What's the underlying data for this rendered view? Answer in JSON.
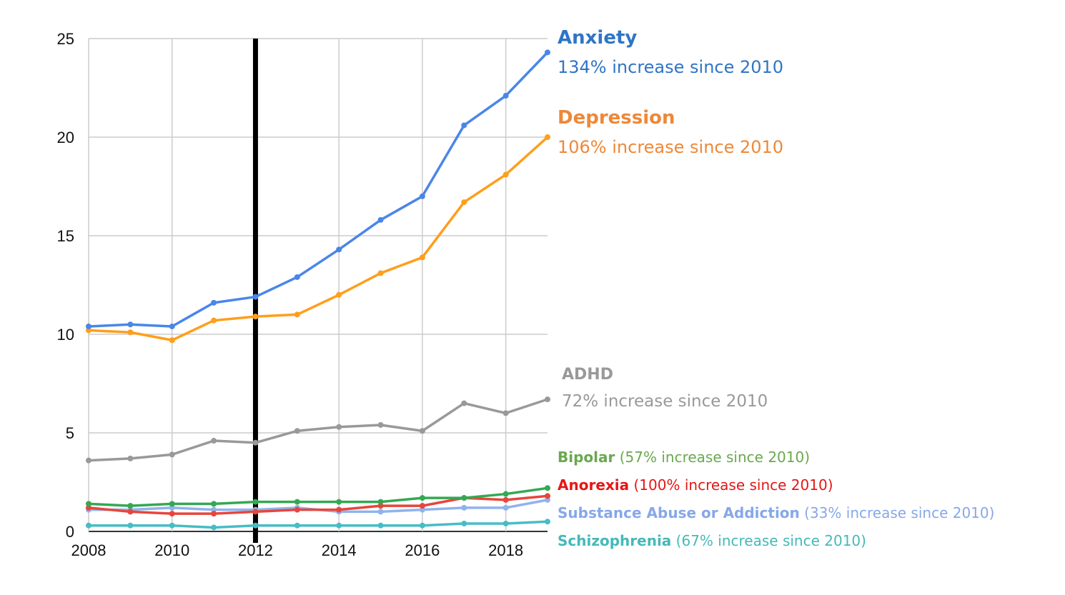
{
  "chart_data": {
    "type": "line",
    "x": [
      2008,
      2009,
      2010,
      2011,
      2012,
      2013,
      2014,
      2015,
      2016,
      2017,
      2018,
      2019
    ],
    "ylim": [
      0,
      25
    ],
    "xlim": [
      2008,
      2019
    ],
    "yticks": [
      "0",
      "5",
      "10",
      "15",
      "20",
      "25"
    ],
    "xticks": [
      "2008",
      "2010",
      "2012",
      "2014",
      "2016",
      "2018"
    ],
    "grid": true,
    "marker_year": 2012,
    "series": [
      {
        "name": "Anxiety",
        "color": "#4a86e8",
        "label_color": "#2f75c6",
        "values": [
          10.4,
          10.5,
          10.4,
          11.6,
          11.9,
          12.9,
          14.3,
          15.8,
          17.0,
          20.6,
          22.1,
          24.3
        ]
      },
      {
        "name": "Depression",
        "color": "#ff9e1b",
        "label_color": "#ee8838",
        "values": [
          10.2,
          10.1,
          9.7,
          10.7,
          10.9,
          11.0,
          12.0,
          13.1,
          13.9,
          16.7,
          18.1,
          20.0
        ]
      },
      {
        "name": "ADHD",
        "color": "#999999",
        "label_color": "#999999",
        "values": [
          3.6,
          3.7,
          3.9,
          4.6,
          4.5,
          5.1,
          5.3,
          5.4,
          5.1,
          6.5,
          6.0,
          6.7
        ]
      },
      {
        "name": "Bipolar",
        "color": "#34a853",
        "label_color": "#6aa84f",
        "values": [
          1.4,
          1.3,
          1.4,
          1.4,
          1.5,
          1.5,
          1.5,
          1.5,
          1.7,
          1.7,
          1.9,
          2.2
        ]
      },
      {
        "name": "Anorexia",
        "color": "#e8453c",
        "label_color": "#e51616",
        "values": [
          1.2,
          1.0,
          0.9,
          0.9,
          1.0,
          1.1,
          1.1,
          1.3,
          1.3,
          1.7,
          1.6,
          1.8
        ]
      },
      {
        "name": "Substance Abuse or Addiction",
        "color": "#8fb3ee",
        "label_color": "#86a8e8",
        "values": [
          1.1,
          1.1,
          1.2,
          1.1,
          1.1,
          1.2,
          1.0,
          1.0,
          1.1,
          1.2,
          1.2,
          1.6
        ]
      },
      {
        "name": "Schizophrenia",
        "color": "#46bdc6",
        "label_color": "#45b9b9",
        "values": [
          0.3,
          0.3,
          0.3,
          0.2,
          0.3,
          0.3,
          0.3,
          0.3,
          0.3,
          0.4,
          0.4,
          0.5
        ]
      }
    ]
  },
  "annotations": {
    "anxiety": {
      "name": "Anxiety",
      "sub": "134% increase since 2010"
    },
    "depression": {
      "name": "Depression",
      "sub": "106% increase since 2010"
    },
    "adhd": {
      "name": "ADHD",
      "sub": "72% increase since 2010"
    },
    "bipolar": {
      "name": "Bipolar",
      "sub": "(57% increase since 2010)"
    },
    "anorexia": {
      "name": "Anorexia",
      "sub": "(100% increase since 2010)"
    },
    "substance": {
      "name": "Substance Abuse or Addiction",
      "sub": "(33% increase since 2010)"
    },
    "schizophrenia": {
      "name": "Schizophrenia",
      "sub": "(67% increase since 2010)"
    }
  }
}
